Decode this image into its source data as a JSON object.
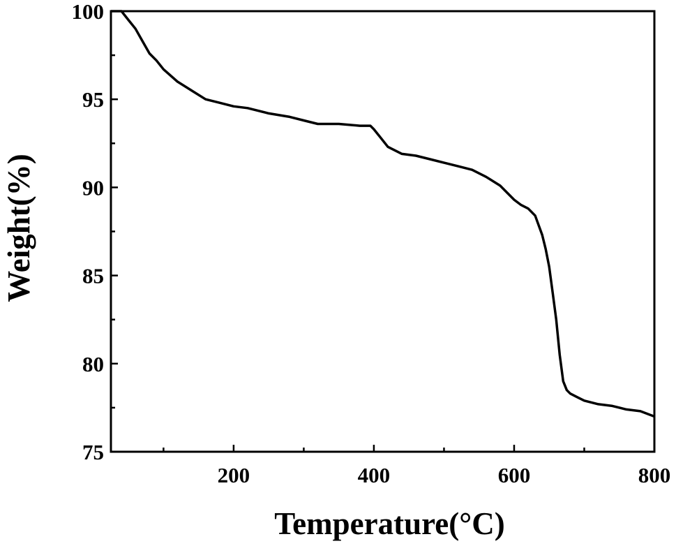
{
  "chart_data": {
    "type": "line",
    "title": "",
    "xlabel": "Temperature(°C)",
    "ylabel": "Weight(%)",
    "xlim": [
      25,
      800
    ],
    "ylim": [
      75,
      100
    ],
    "x_ticks": [
      200,
      400,
      600,
      800
    ],
    "x_tick_labels": [
      "200",
      "400",
      "600",
      "800"
    ],
    "y_ticks": [
      75,
      80,
      85,
      90,
      95,
      100
    ],
    "y_tick_labels": [
      "75",
      "80",
      "85",
      "90",
      "95",
      "100"
    ],
    "grid": false,
    "line_color": "#000000",
    "series": [
      {
        "x": [
          25,
          40,
          50,
          60,
          70,
          80,
          90,
          100,
          120,
          140,
          160,
          180,
          200,
          220,
          250,
          280,
          300,
          320,
          350,
          380,
          395,
          400,
          410,
          420,
          440,
          460,
          480,
          500,
          520,
          540,
          560,
          580,
          600,
          610,
          620,
          630,
          640,
          645,
          650,
          655,
          660,
          665,
          670,
          675,
          680,
          690,
          700,
          720,
          740,
          760,
          780,
          800
        ],
        "y": [
          100,
          100,
          99.5,
          99.0,
          98.3,
          97.6,
          97.2,
          96.7,
          96.0,
          95.5,
          95.0,
          94.8,
          94.6,
          94.5,
          94.2,
          94.0,
          93.8,
          93.6,
          93.6,
          93.5,
          93.5,
          93.3,
          92.8,
          92.3,
          91.9,
          91.8,
          91.6,
          91.4,
          91.2,
          91.0,
          90.6,
          90.1,
          89.3,
          89.0,
          88.8,
          88.4,
          87.3,
          86.5,
          85.5,
          84.0,
          82.5,
          80.5,
          79.0,
          78.5,
          78.3,
          78.1,
          77.9,
          77.7,
          77.6,
          77.4,
          77.3,
          77.0
        ]
      }
    ]
  }
}
